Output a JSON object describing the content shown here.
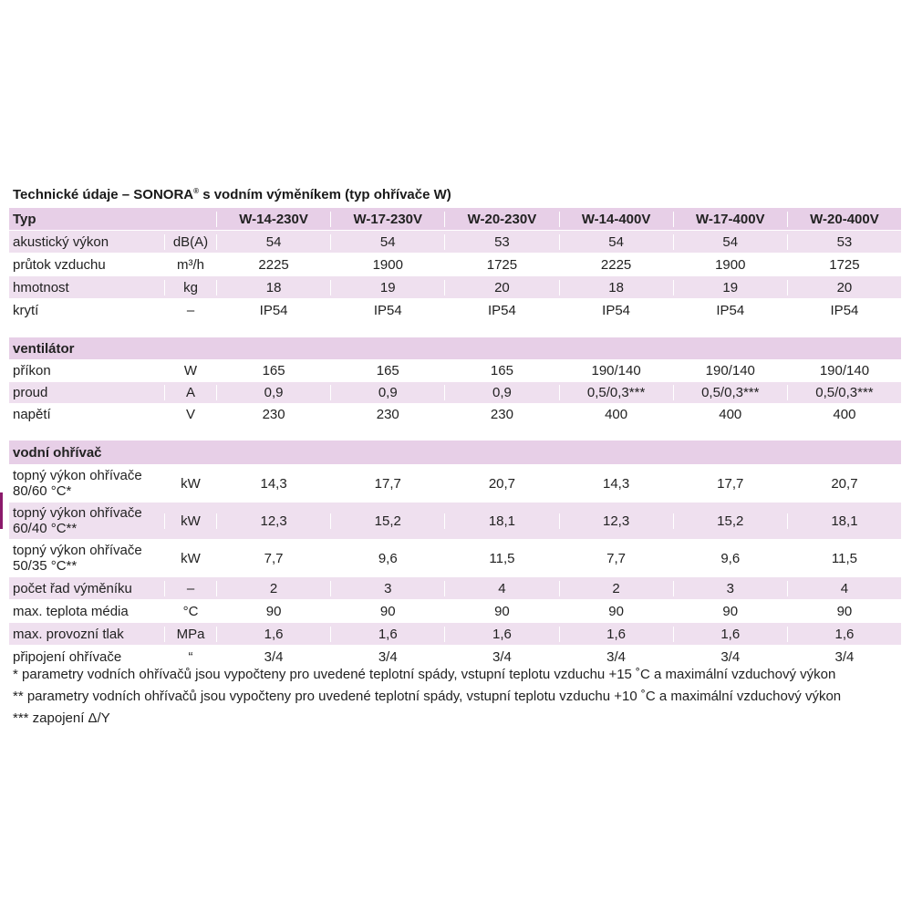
{
  "title_main": "Technické údaje – SONORA",
  "title_reg": "®",
  "title_rest": " s vodním výměníkem (typ ohřívače W)",
  "header": {
    "label": "Typ",
    "unit": "",
    "cols": [
      "W-14-230V",
      "W-17-230V",
      "W-20-230V",
      "W-14-400V",
      "W-17-400V",
      "W-20-400V"
    ]
  },
  "general": [
    {
      "label": "akustický výkon",
      "unit": "dB(A)",
      "values": [
        "54",
        "54",
        "53",
        "54",
        "54",
        "53"
      ]
    },
    {
      "label": "průtok vzduchu",
      "unit": "m³/h",
      "values": [
        "2225",
        "1900",
        "1725",
        "2225",
        "1900",
        "1725"
      ]
    },
    {
      "label": "hmotnost",
      "unit": "kg",
      "values": [
        "18",
        "19",
        "20",
        "18",
        "19",
        "20"
      ]
    },
    {
      "label": "krytí",
      "unit": "–",
      "values": [
        "IP54",
        "IP54",
        "IP54",
        "IP54",
        "IP54",
        "IP54"
      ]
    }
  ],
  "fan": {
    "heading": "ventilátor",
    "rows": [
      {
        "label": "příkon",
        "unit": "W",
        "values": [
          "165",
          "165",
          "165",
          "190/140",
          "190/140",
          "190/140"
        ]
      },
      {
        "label": "proud",
        "unit": "A",
        "values": [
          "0,9",
          "0,9",
          "0,9",
          "0,5/0,3***",
          "0,5/0,3***",
          "0,5/0,3***"
        ]
      },
      {
        "label": "napětí",
        "unit": "V",
        "values": [
          "230",
          "230",
          "230",
          "400",
          "400",
          "400"
        ]
      }
    ]
  },
  "heater": {
    "heading": "vodní ohřívač",
    "rows": [
      {
        "label": "topný výkon ohřívače",
        "label2": "80/60 °C*",
        "unit": "kW",
        "values": [
          "14,3",
          "17,7",
          "20,7",
          "14,3",
          "17,7",
          "20,7"
        ]
      },
      {
        "label": "topný výkon ohřívače",
        "label2": "60/40 °C**",
        "unit": "kW",
        "values": [
          "12,3",
          "15,2",
          "18,1",
          "12,3",
          "15,2",
          "18,1"
        ]
      },
      {
        "label": "topný výkon ohřívače",
        "label2": "50/35 °C**",
        "unit": "kW",
        "values": [
          "7,7",
          "9,6",
          "11,5",
          "7,7",
          "9,6",
          "11,5"
        ]
      },
      {
        "label": "počet řad výměníku",
        "unit": "–",
        "values": [
          "2",
          "3",
          "4",
          "2",
          "3",
          "4"
        ]
      },
      {
        "label": "max. teplota média",
        "unit": "°C",
        "values": [
          "90",
          "90",
          "90",
          "90",
          "90",
          "90"
        ]
      },
      {
        "label": "max. provozní tlak",
        "unit": "MPa",
        "values": [
          "1,6",
          "1,6",
          "1,6",
          "1,6",
          "1,6",
          "1,6"
        ]
      },
      {
        "label": "připojení ohřívače",
        "unit": "“",
        "values": [
          "3/4",
          "3/4",
          "3/4",
          "3/4",
          "3/4",
          "3/4"
        ]
      }
    ]
  },
  "notes": [
    "* parametry vodních ohřívačů jsou vypočteny pro uvedené teplotní spády, vstupní teplotu vzduchu +15 ˚C a maximální vzduchový výkon",
    "** parametry vodních ohřívačů jsou vypočteny pro uvedené teplotní spády, vstupní teplotu vzduchu +10 ˚C a maximální vzduchový výkon",
    "*** zapojení Δ/Y"
  ]
}
